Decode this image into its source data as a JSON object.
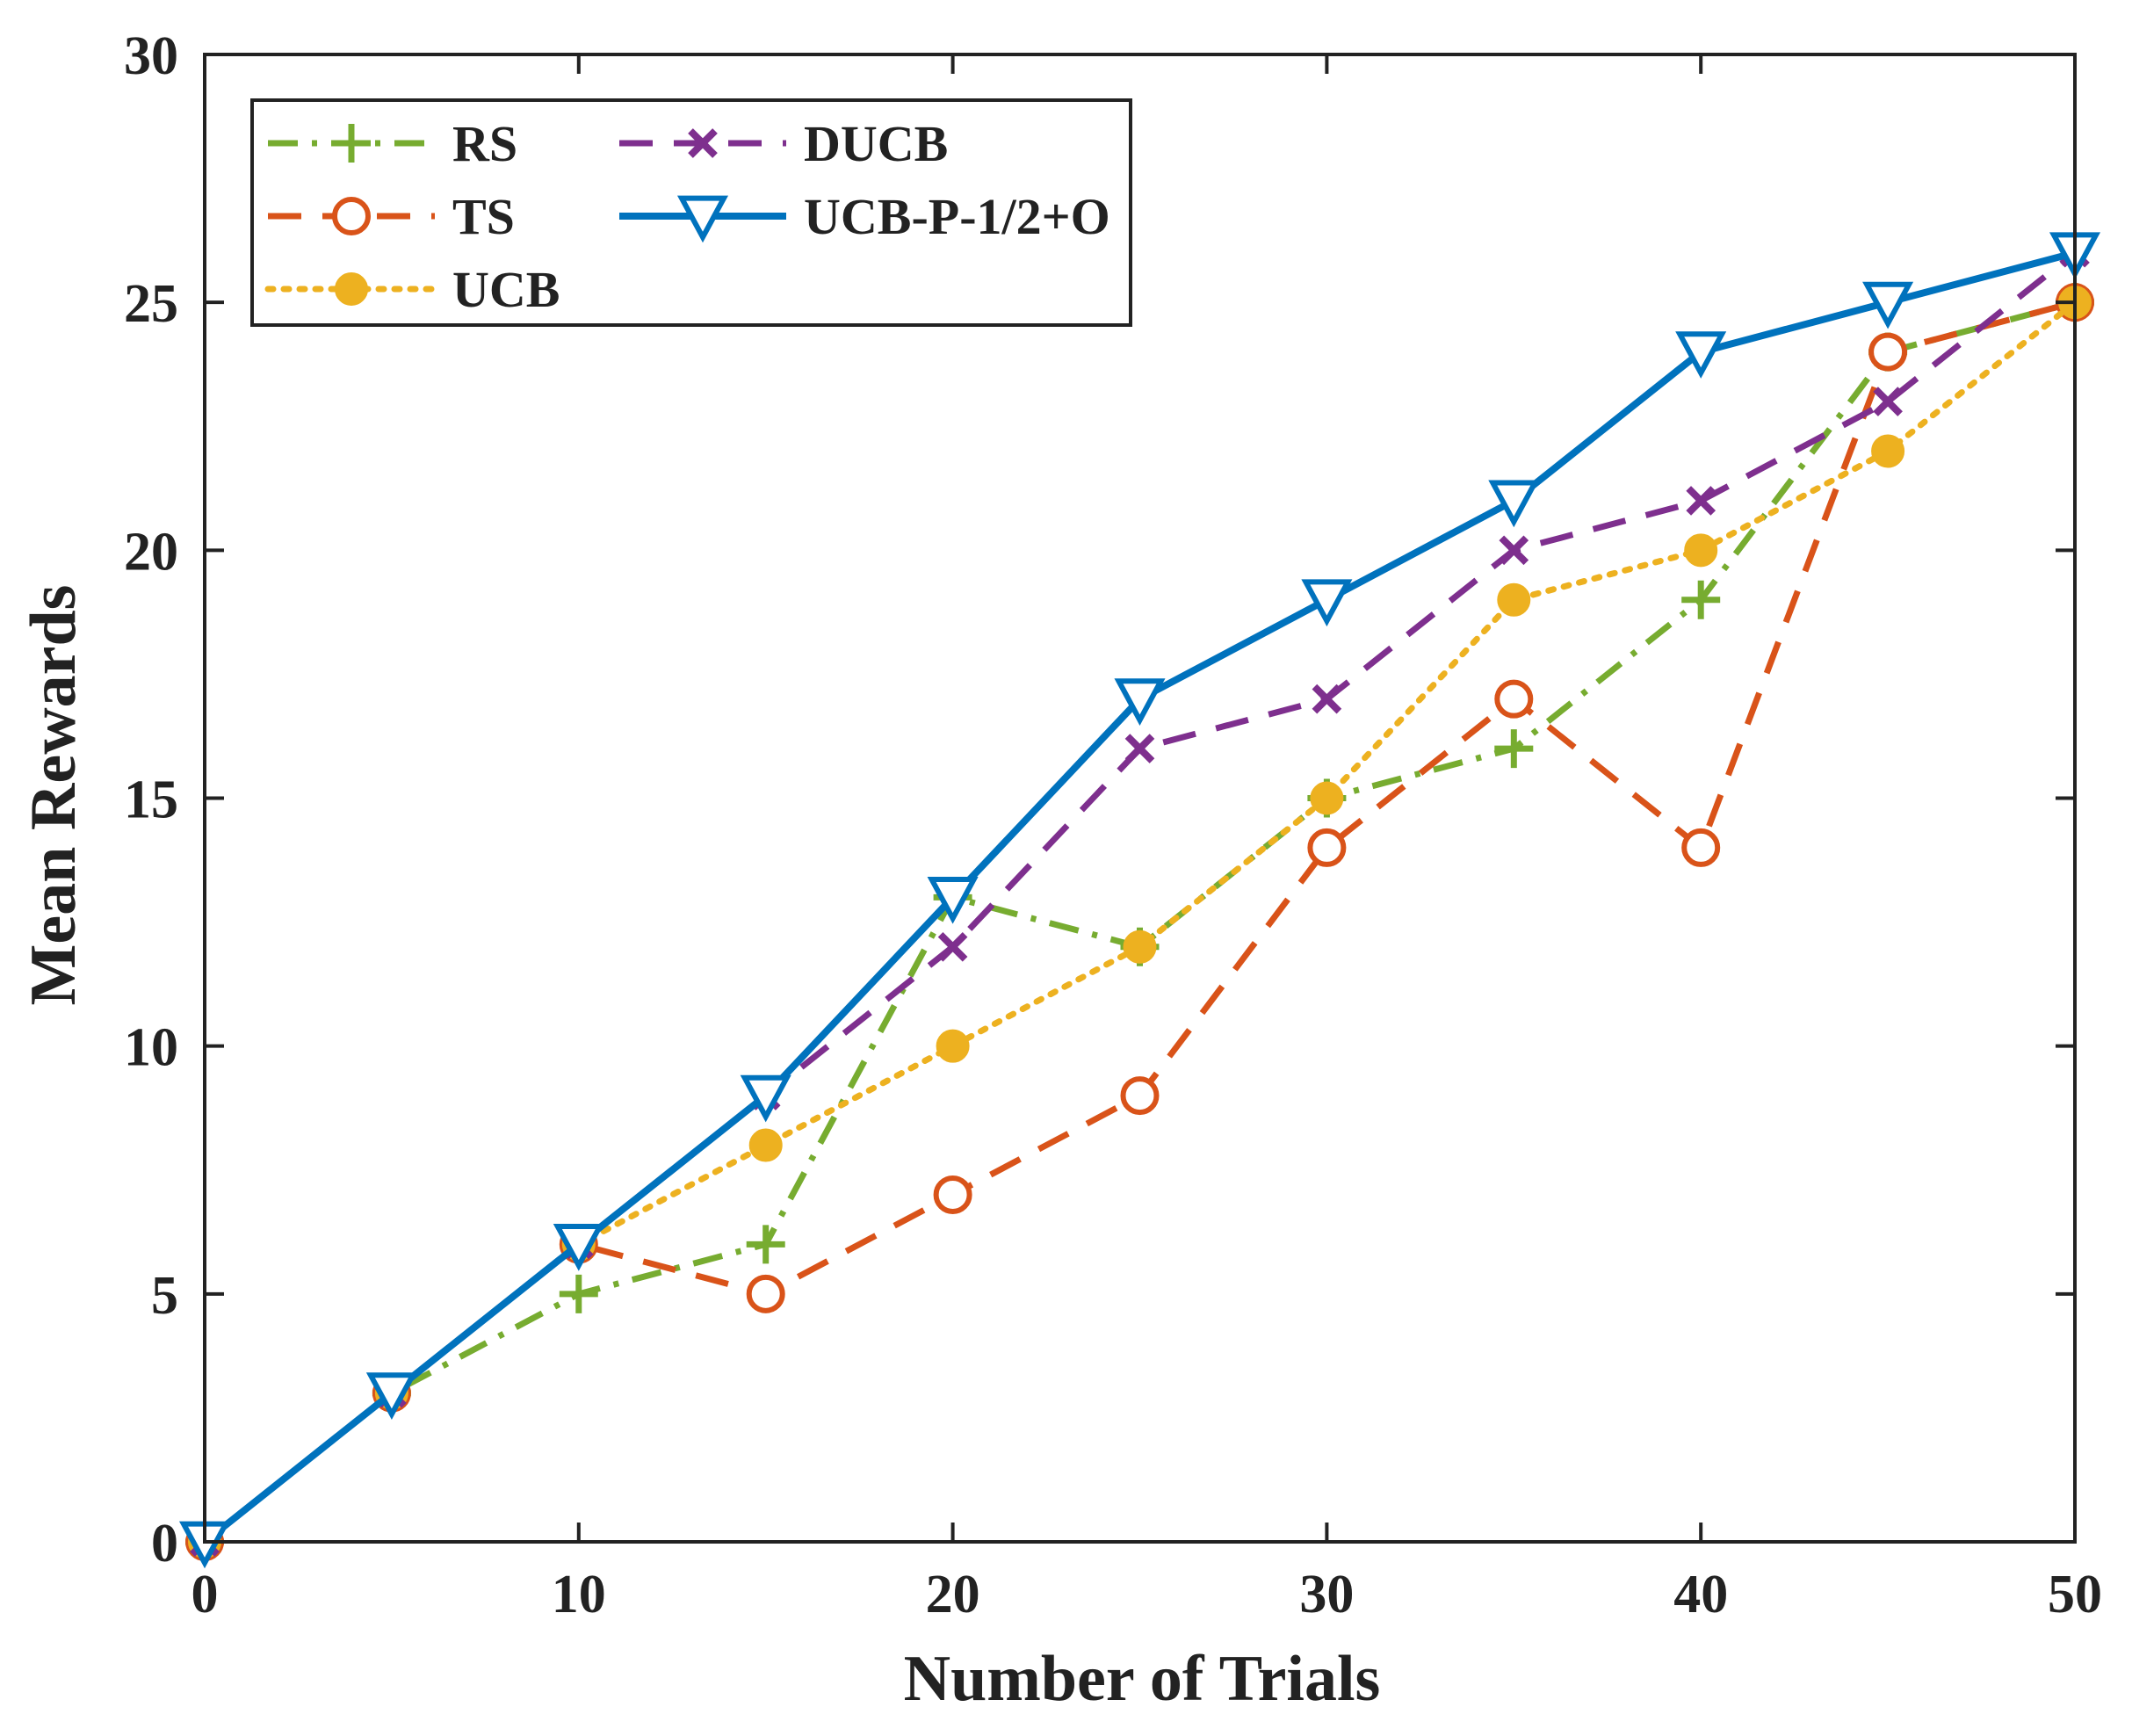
{
  "chart_data": {
    "type": "line",
    "title": "",
    "xlabel": "Number of Trials",
    "ylabel": "Mean Rewards",
    "xlim": [
      0,
      50
    ],
    "ylim": [
      0,
      30
    ],
    "xticks": [
      0,
      10,
      20,
      30,
      40,
      50
    ],
    "yticks": [
      0,
      5,
      10,
      15,
      20,
      25,
      30
    ],
    "grid": false,
    "legend_position": "top-left",
    "x": [
      0,
      5,
      10,
      15,
      20,
      25,
      30,
      35,
      40,
      45,
      50
    ],
    "series": [
      {
        "name": "RS",
        "color": "#77AC30",
        "style": "dashdot",
        "marker": "plus",
        "values": [
          0,
          3,
          5,
          6,
          13,
          12,
          15,
          16,
          19,
          24,
          25
        ]
      },
      {
        "name": "TS",
        "color": "#D95319",
        "style": "dashed",
        "marker": "circle-open",
        "values": [
          0,
          3,
          6,
          5,
          7,
          9,
          14,
          17,
          14,
          24,
          25
        ]
      },
      {
        "name": "UCB",
        "color": "#EDB120",
        "style": "dotted",
        "marker": "circle-filled",
        "values": [
          0,
          3,
          6,
          8,
          10,
          12,
          15,
          19,
          20,
          22,
          25
        ]
      },
      {
        "name": "DUCB",
        "color": "#7E2F8E",
        "style": "dashed",
        "marker": "x",
        "values": [
          0,
          3,
          6,
          9,
          12,
          16,
          17,
          20,
          21,
          23,
          26
        ]
      },
      {
        "name": "UCB-P-1/2+O",
        "color": "#0072BD",
        "style": "solid",
        "marker": "triangle-down",
        "values": [
          0,
          3,
          6,
          9,
          13,
          17,
          19,
          21,
          24,
          25,
          26
        ]
      }
    ]
  }
}
